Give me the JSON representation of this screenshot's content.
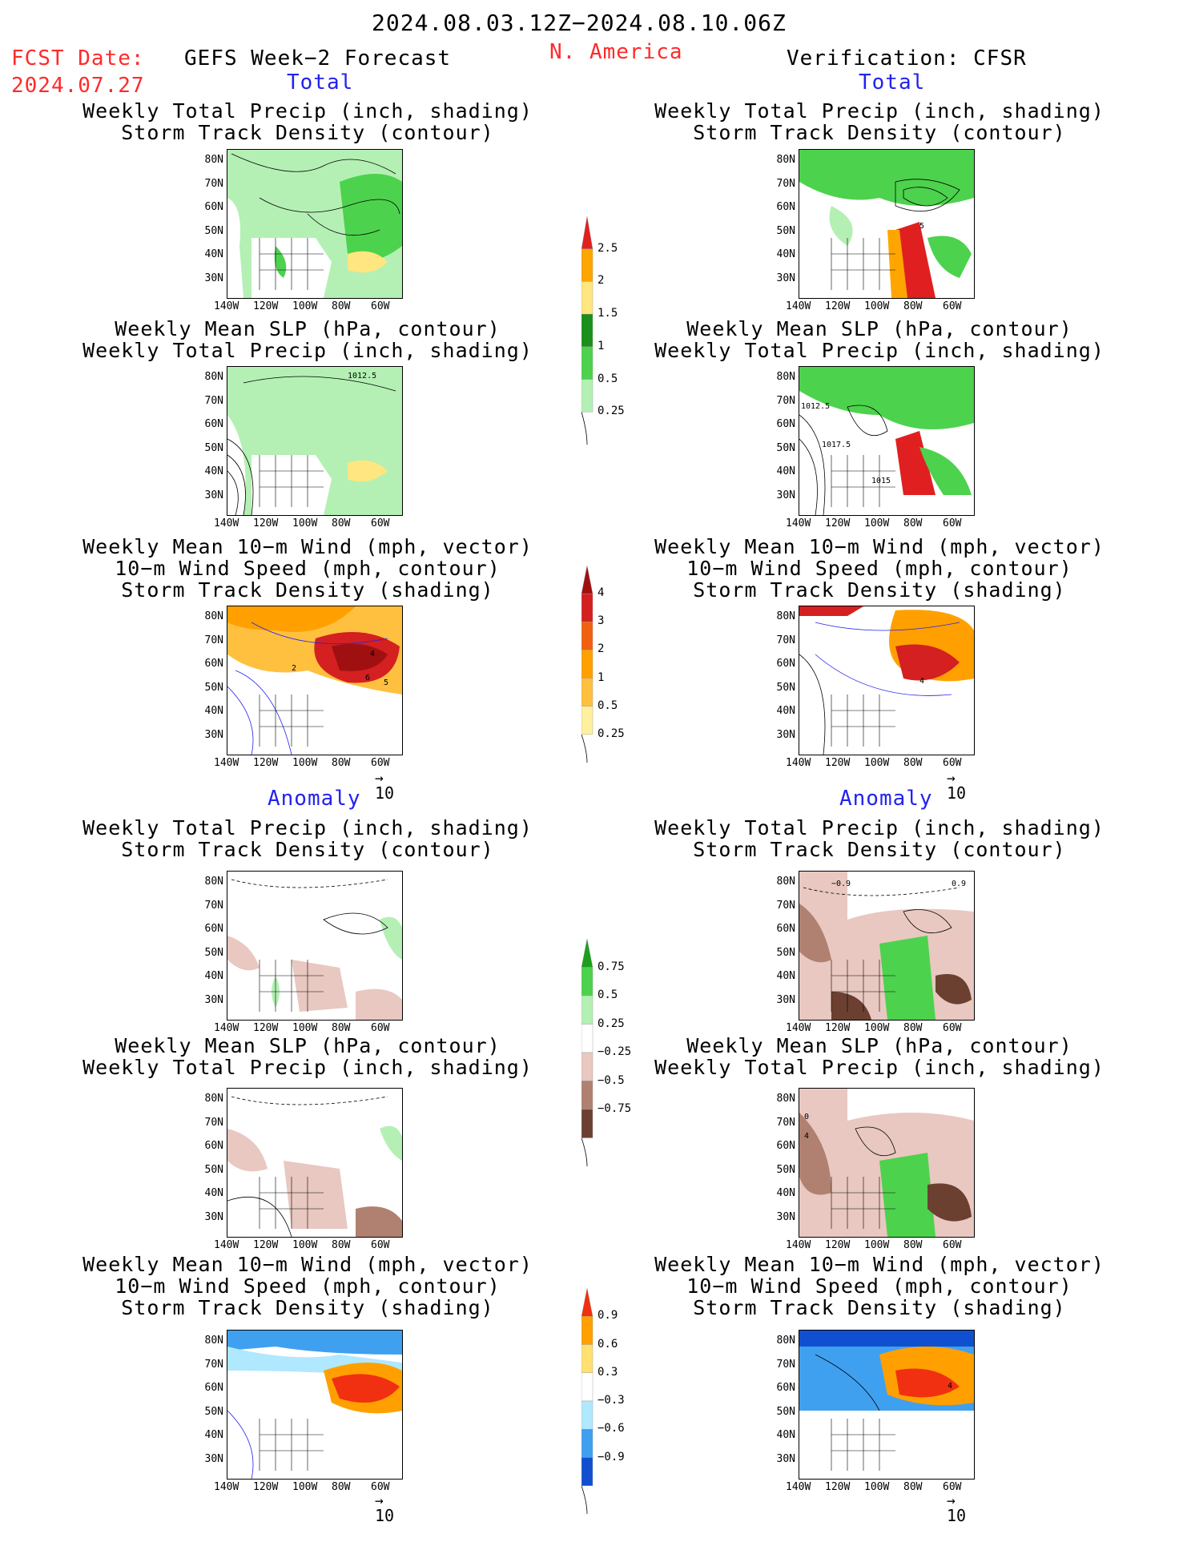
{
  "header": {
    "date_range": "2024.08.03.12Z−2024.08.10.06Z",
    "fcst_label": "FCST Date:",
    "fcst_date": "2024.07.27",
    "forecast_title": "GEFS Week−2 Forecast",
    "region": "N. America",
    "verification": "Verification: CFSR"
  },
  "sections": {
    "total": "Total",
    "anomaly": "Anomaly"
  },
  "titles": {
    "precip_storm": [
      "Weekly Total Precip (inch, shading)",
      "Storm Track Density (contour)"
    ],
    "slp_precip": [
      "Weekly Mean SLP (hPa, contour)",
      "Weekly Total Precip (inch, shading)"
    ],
    "wind_storm": [
      "Weekly Mean 10−m Wind (mph, vector)",
      "10−m Wind Speed (mph, contour)",
      "Storm Track Density (shading)"
    ]
  },
  "axes": {
    "lat_labels": [
      "80N",
      "70N",
      "60N",
      "50N",
      "40N",
      "30N"
    ],
    "lon_labels": [
      "140W",
      "120W",
      "100W",
      "80W",
      "60W"
    ]
  },
  "vector_reference": "10",
  "panel_labels": {
    "slp_fcst": "1012.5",
    "slp_obs_a": "1012.5",
    "slp_obs_b": "1017.5",
    "slp_obs_c": "1015",
    "wind_fcst_a": "4",
    "wind_fcst_b": "2",
    "wind_fcst_c": "6",
    "wind_fcst_d": "5",
    "wind_obs": "4",
    "precip_obs": "5",
    "anom_obs_a": "−0.9",
    "anom_obs_b": "0.9",
    "anom_slp_obs_a": "0",
    "anom_slp_obs_b": "4",
    "anom_wind_obs": "4"
  },
  "colorbars": {
    "precip_total": {
      "labels": [
        "2.5",
        "2",
        "1.5",
        "1",
        "0.5",
        "0.25"
      ],
      "colors": [
        "#e02020",
        "#ffa500",
        "#ffe680",
        "#1a8f1a",
        "#4dd24d",
        "#b4f0b4"
      ]
    },
    "storm_total": {
      "labels": [
        "4",
        "3",
        "2",
        "1",
        "0.5",
        "0.25"
      ],
      "colors": [
        "#a01010",
        "#d42020",
        "#f06010",
        "#ffa000",
        "#ffc040",
        "#fff0a0"
      ]
    },
    "precip_anom": {
      "labels": [
        "0.75",
        "0.5",
        "0.25",
        "−0.25",
        "−0.5",
        "−0.75"
      ],
      "colors": [
        "#1a9f1a",
        "#4dd24d",
        "#b4f0b4",
        "#ffffff",
        "#e8c8c0",
        "#b08070",
        "#6b4030"
      ]
    },
    "storm_anom": {
      "labels": [
        "0.9",
        "0.6",
        "0.3",
        "−0.3",
        "−0.6",
        "−0.9"
      ],
      "colors": [
        "#f03010",
        "#ffa000",
        "#ffe070",
        "#ffffff",
        "#b0e8ff",
        "#40a0f0",
        "#1050d0"
      ]
    }
  }
}
